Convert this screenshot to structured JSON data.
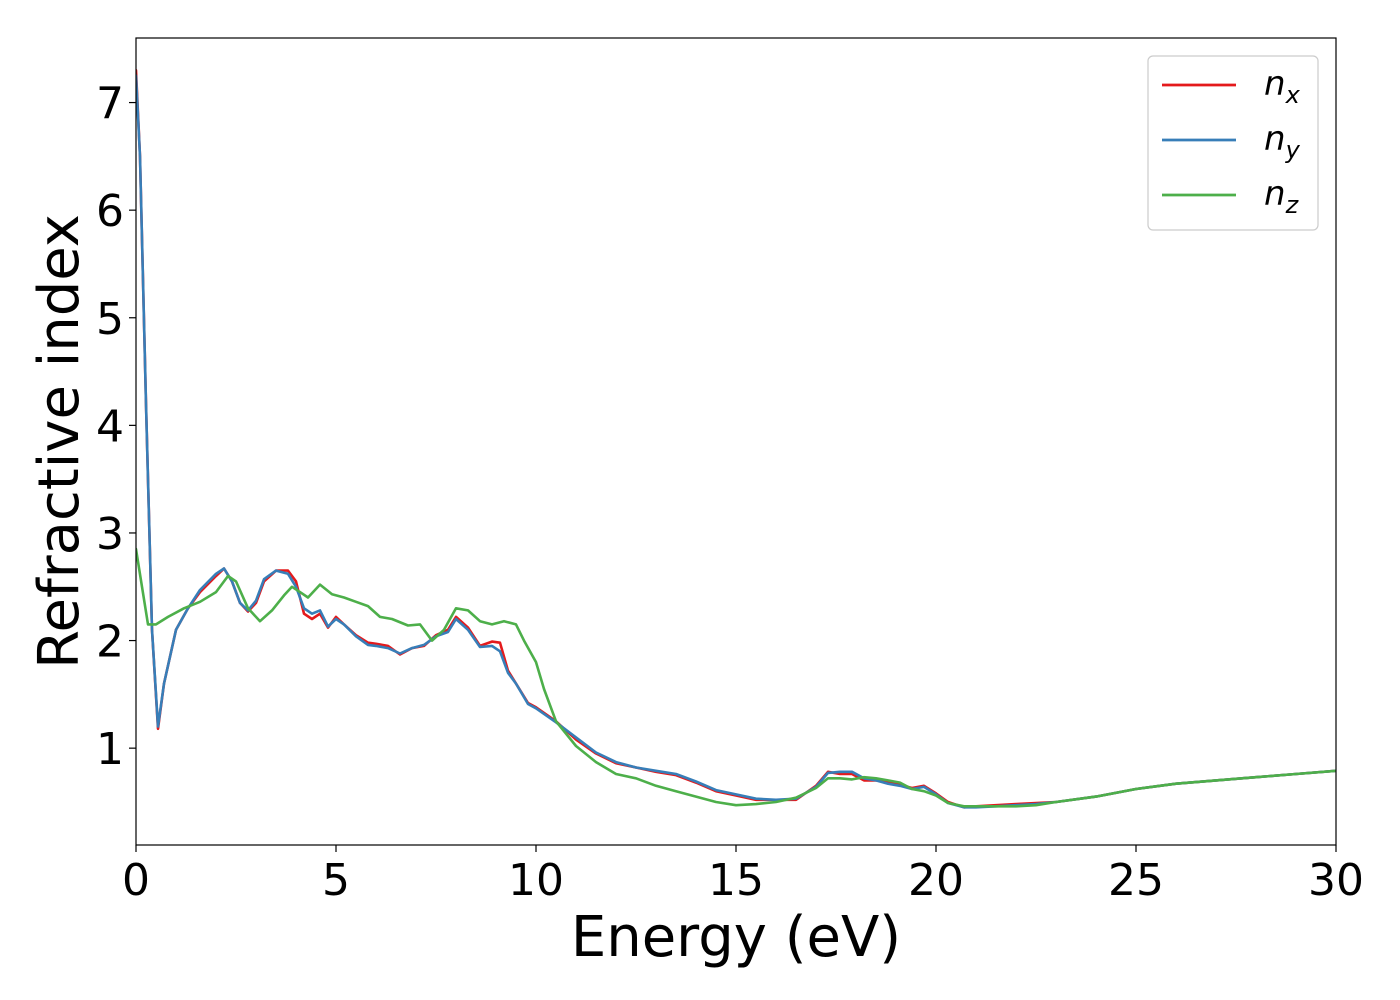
{
  "chart_data": {
    "type": "line",
    "xlabel": "Energy (eV)",
    "ylabel": "Refractive index",
    "xlim": [
      0,
      30
    ],
    "ylim": [
      0.1,
      7.6
    ],
    "xticks": [
      "0",
      "5",
      "10",
      "15",
      "20",
      "25",
      "30"
    ],
    "yticks": [
      "1",
      "2",
      "3",
      "4",
      "5",
      "6",
      "7"
    ],
    "grid": false,
    "legend_position": "top-right",
    "series": [
      {
        "name": "n_x",
        "label_main": "n",
        "label_sub": "x",
        "color": "#e41a1c",
        "x": [
          0,
          0.1,
          0.25,
          0.4,
          0.55,
          0.7,
          1.0,
          1.3,
          1.6,
          2.0,
          2.2,
          2.4,
          2.6,
          2.8,
          3.0,
          3.2,
          3.5,
          3.8,
          4.0,
          4.2,
          4.4,
          4.6,
          4.8,
          5.0,
          5.2,
          5.5,
          5.8,
          6.0,
          6.3,
          6.6,
          6.9,
          7.2,
          7.5,
          7.8,
          8.0,
          8.3,
          8.6,
          8.9,
          9.1,
          9.3,
          9.5,
          9.8,
          10.0,
          10.5,
          11.0,
          11.5,
          12.0,
          12.5,
          13.0,
          13.5,
          14.0,
          14.5,
          15.0,
          15.5,
          16.0,
          16.5,
          17.0,
          17.3,
          17.6,
          17.9,
          18.2,
          18.5,
          18.8,
          19.1,
          19.4,
          19.7,
          20.0,
          20.3,
          20.7,
          21.0,
          21.5,
          22.0,
          22.5,
          23.0,
          24.0,
          25.0,
          26.0,
          27.0,
          28.0,
          29.0,
          30.0
        ],
        "values": [
          7.3,
          6.5,
          4.2,
          2.1,
          1.18,
          1.6,
          2.1,
          2.3,
          2.45,
          2.6,
          2.67,
          2.55,
          2.35,
          2.27,
          2.35,
          2.55,
          2.65,
          2.65,
          2.55,
          2.25,
          2.2,
          2.25,
          2.12,
          2.22,
          2.15,
          2.05,
          1.98,
          1.97,
          1.95,
          1.87,
          1.93,
          1.95,
          2.05,
          2.1,
          2.22,
          2.12,
          1.95,
          1.99,
          1.98,
          1.72,
          1.6,
          1.42,
          1.38,
          1.25,
          1.08,
          0.95,
          0.86,
          0.82,
          0.78,
          0.75,
          0.68,
          0.6,
          0.56,
          0.52,
          0.52,
          0.52,
          0.65,
          0.78,
          0.76,
          0.76,
          0.7,
          0.7,
          0.68,
          0.66,
          0.63,
          0.65,
          0.58,
          0.5,
          0.45,
          0.46,
          0.47,
          0.48,
          0.49,
          0.5,
          0.55,
          0.62,
          0.67,
          0.7,
          0.73,
          0.76,
          0.79
        ]
      },
      {
        "name": "n_y",
        "label_main": "n",
        "label_sub": "y",
        "color": "#377eb8",
        "x": [
          0,
          0.1,
          0.25,
          0.4,
          0.55,
          0.7,
          1.0,
          1.3,
          1.6,
          2.0,
          2.2,
          2.4,
          2.6,
          2.8,
          3.0,
          3.2,
          3.5,
          3.8,
          4.0,
          4.2,
          4.4,
          4.6,
          4.8,
          5.0,
          5.2,
          5.5,
          5.8,
          6.0,
          6.3,
          6.6,
          6.9,
          7.2,
          7.5,
          7.8,
          8.0,
          8.3,
          8.6,
          8.9,
          9.1,
          9.3,
          9.5,
          9.8,
          10.0,
          10.5,
          11.0,
          11.5,
          12.0,
          12.5,
          13.0,
          13.5,
          14.0,
          14.5,
          15.0,
          15.5,
          16.0,
          16.5,
          17.0,
          17.3,
          17.6,
          17.9,
          18.2,
          18.5,
          18.8,
          19.1,
          19.4,
          19.7,
          20.0,
          20.3,
          20.7,
          21.0,
          21.5,
          22.0,
          22.5,
          23.0,
          24.0,
          25.0,
          26.0,
          27.0,
          28.0,
          29.0,
          30.0
        ],
        "values": [
          7.25,
          6.5,
          4.2,
          2.1,
          1.2,
          1.6,
          2.1,
          2.3,
          2.47,
          2.62,
          2.67,
          2.55,
          2.35,
          2.28,
          2.37,
          2.57,
          2.65,
          2.62,
          2.5,
          2.3,
          2.25,
          2.28,
          2.13,
          2.2,
          2.15,
          2.04,
          1.96,
          1.95,
          1.93,
          1.88,
          1.93,
          1.96,
          2.04,
          2.08,
          2.2,
          2.1,
          1.94,
          1.95,
          1.9,
          1.7,
          1.6,
          1.41,
          1.37,
          1.24,
          1.1,
          0.96,
          0.87,
          0.82,
          0.79,
          0.76,
          0.69,
          0.61,
          0.57,
          0.53,
          0.52,
          0.53,
          0.64,
          0.77,
          0.78,
          0.78,
          0.72,
          0.7,
          0.67,
          0.65,
          0.62,
          0.64,
          0.57,
          0.49,
          0.45,
          0.45,
          0.46,
          0.47,
          0.48,
          0.5,
          0.55,
          0.62,
          0.67,
          0.7,
          0.73,
          0.76,
          0.79
        ]
      },
      {
        "name": "n_z",
        "label_main": "n",
        "label_sub": "z",
        "color": "#4daf4a",
        "x": [
          0,
          0.15,
          0.3,
          0.5,
          0.8,
          1.2,
          1.6,
          2.0,
          2.3,
          2.5,
          2.8,
          3.1,
          3.4,
          3.7,
          3.9,
          4.1,
          4.3,
          4.6,
          4.9,
          5.2,
          5.5,
          5.8,
          6.1,
          6.4,
          6.8,
          7.1,
          7.4,
          7.7,
          8.0,
          8.3,
          8.6,
          8.9,
          9.2,
          9.5,
          9.7,
          10.0,
          10.2,
          10.5,
          11.0,
          11.5,
          12.0,
          12.5,
          13.0,
          13.5,
          14.0,
          14.5,
          15.0,
          15.5,
          16.0,
          16.5,
          17.0,
          17.3,
          17.6,
          17.9,
          18.2,
          18.5,
          18.8,
          19.1,
          19.4,
          19.7,
          20.0,
          20.3,
          20.7,
          21.0,
          21.5,
          22.0,
          22.5,
          23.0,
          24.0,
          25.0,
          26.0,
          27.0,
          28.0,
          29.0,
          30.0
        ],
        "values": [
          2.85,
          2.5,
          2.15,
          2.15,
          2.22,
          2.3,
          2.36,
          2.45,
          2.6,
          2.55,
          2.3,
          2.18,
          2.28,
          2.42,
          2.5,
          2.45,
          2.4,
          2.52,
          2.43,
          2.4,
          2.36,
          2.32,
          2.22,
          2.2,
          2.14,
          2.15,
          2.0,
          2.1,
          2.3,
          2.28,
          2.18,
          2.15,
          2.18,
          2.15,
          2.0,
          1.8,
          1.55,
          1.25,
          1.02,
          0.87,
          0.76,
          0.72,
          0.65,
          0.6,
          0.55,
          0.5,
          0.47,
          0.48,
          0.5,
          0.54,
          0.63,
          0.72,
          0.72,
          0.71,
          0.73,
          0.72,
          0.7,
          0.68,
          0.62,
          0.6,
          0.56,
          0.49,
          0.46,
          0.46,
          0.46,
          0.46,
          0.47,
          0.5,
          0.55,
          0.62,
          0.67,
          0.7,
          0.73,
          0.76,
          0.79
        ]
      }
    ]
  }
}
